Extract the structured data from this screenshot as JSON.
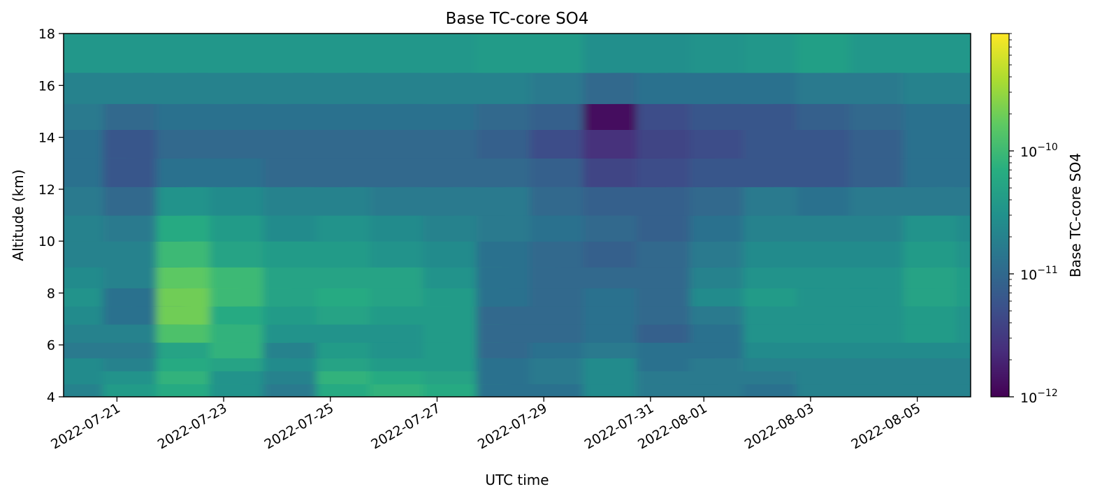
{
  "chart_data": {
    "type": "heatmap",
    "title": "Base TC-core SO4",
    "xlabel": "UTC time",
    "ylabel": "Altitude (km)",
    "colorbar_label": "Base TC-core SO4",
    "colormap": "viridis",
    "colorbar_scale": "log",
    "color_range": [
      1e-12,
      9e-10
    ],
    "colorbar_ticks": [
      {
        "value": 1e-12,
        "base": "10",
        "exp": "−12"
      },
      {
        "value": 1e-11,
        "base": "10",
        "exp": "−11"
      },
      {
        "value": 1e-10,
        "base": "10",
        "exp": "−10"
      }
    ],
    "xlim": [
      "2022-07-20",
      "2022-08-06"
    ],
    "ylim": [
      4,
      18
    ],
    "x_ticks": [
      {
        "date": "2022-07-21",
        "label": "2022-07-21"
      },
      {
        "date": "2022-07-23",
        "label": "2022-07-23"
      },
      {
        "date": "2022-07-25",
        "label": "2022-07-25"
      },
      {
        "date": "2022-07-27",
        "label": "2022-07-27"
      },
      {
        "date": "2022-07-29",
        "label": "2022-07-29"
      },
      {
        "date": "2022-07-31",
        "label": "2022-07-31"
      },
      {
        "date": "2022-08-01",
        "label": "2022-08-01"
      },
      {
        "date": "2022-08-03",
        "label": "2022-08-03"
      },
      {
        "date": "2022-08-05",
        "label": "2022-08-05"
      }
    ],
    "y_ticks": [
      4,
      6,
      8,
      10,
      12,
      14,
      16,
      18
    ],
    "altitude_levels_km": [
      {
        "bottom": 4.0,
        "top": 4.5
      },
      {
        "bottom": 4.5,
        "top": 5.0
      },
      {
        "bottom": 5.0,
        "top": 5.5
      },
      {
        "bottom": 5.5,
        "top": 6.1
      },
      {
        "bottom": 6.1,
        "top": 6.8
      },
      {
        "bottom": 6.8,
        "top": 7.5
      },
      {
        "bottom": 7.5,
        "top": 8.2
      },
      {
        "bottom": 8.2,
        "top": 9.0
      },
      {
        "bottom": 9.0,
        "top": 10.0
      },
      {
        "bottom": 10.0,
        "top": 11.0
      },
      {
        "bottom": 11.0,
        "top": 12.1
      },
      {
        "bottom": 12.1,
        "top": 13.2
      },
      {
        "bottom": 13.2,
        "top": 14.3
      },
      {
        "bottom": 14.3,
        "top": 15.3
      },
      {
        "bottom": 15.3,
        "top": 16.5
      },
      {
        "bottom": 16.5,
        "top": 18.0
      }
    ],
    "time_columns": [
      "2022-07-20",
      "2022-07-21",
      "2022-07-22",
      "2022-07-23",
      "2022-07-24",
      "2022-07-25",
      "2022-07-26",
      "2022-07-27",
      "2022-07-28",
      "2022-07-29",
      "2022-07-30",
      "2022-07-31",
      "2022-08-01",
      "2022-08-02",
      "2022-08-03",
      "2022-08-04",
      "2022-08-05",
      "2022-08-06"
    ],
    "log10_values": [
      [
        -10.7,
        -10.4,
        -10.2,
        -10.5,
        -10.8,
        -10.2,
        -10.1,
        -10.2,
        -10.9,
        -10.9,
        -10.6,
        -10.8,
        -10.8,
        -10.9,
        -10.7,
        -10.7,
        -10.7,
        -10.7
      ],
      [
        -10.6,
        -10.5,
        -10.1,
        -10.5,
        -10.7,
        -10.1,
        -10.2,
        -10.3,
        -10.9,
        -10.8,
        -10.6,
        -10.8,
        -10.8,
        -10.8,
        -10.7,
        -10.7,
        -10.7,
        -10.7
      ],
      [
        -10.6,
        -10.7,
        -10.2,
        -10.3,
        -10.6,
        -10.3,
        -10.4,
        -10.4,
        -10.9,
        -10.8,
        -10.6,
        -10.9,
        -10.8,
        -10.7,
        -10.7,
        -10.7,
        -10.7,
        -10.7
      ],
      [
        -10.8,
        -10.8,
        -10.3,
        -10.1,
        -10.7,
        -10.4,
        -10.5,
        -10.4,
        -11.0,
        -10.9,
        -10.8,
        -10.9,
        -10.9,
        -10.6,
        -10.6,
        -10.6,
        -10.6,
        -10.6
      ],
      [
        -10.7,
        -10.7,
        -9.9,
        -10.1,
        -10.5,
        -10.5,
        -10.5,
        -10.4,
        -11.0,
        -11.0,
        -10.9,
        -11.1,
        -10.9,
        -10.5,
        -10.5,
        -10.5,
        -10.4,
        -10.5
      ],
      [
        -10.6,
        -10.9,
        -9.7,
        -10.2,
        -10.4,
        -10.3,
        -10.4,
        -10.4,
        -11.0,
        -11.0,
        -10.9,
        -11.0,
        -10.8,
        -10.5,
        -10.5,
        -10.5,
        -10.4,
        -10.5
      ],
      [
        -10.5,
        -10.9,
        -9.7,
        -10.0,
        -10.3,
        -10.2,
        -10.3,
        -10.4,
        -10.9,
        -11.0,
        -10.9,
        -11.0,
        -10.6,
        -10.4,
        -10.5,
        -10.5,
        -10.3,
        -10.4
      ],
      [
        -10.6,
        -10.7,
        -9.8,
        -10.0,
        -10.3,
        -10.3,
        -10.3,
        -10.5,
        -10.9,
        -11.0,
        -11.0,
        -11.0,
        -10.7,
        -10.5,
        -10.5,
        -10.5,
        -10.3,
        -10.4
      ],
      [
        -10.7,
        -10.7,
        -10.0,
        -10.3,
        -10.4,
        -10.4,
        -10.5,
        -10.6,
        -10.9,
        -11.0,
        -11.1,
        -11.0,
        -10.8,
        -10.6,
        -10.6,
        -10.6,
        -10.4,
        -10.5
      ],
      [
        -10.7,
        -10.8,
        -10.2,
        -10.4,
        -10.6,
        -10.5,
        -10.6,
        -10.7,
        -10.8,
        -10.9,
        -11.0,
        -11.1,
        -10.9,
        -10.7,
        -10.7,
        -10.7,
        -10.5,
        -10.6
      ],
      [
        -10.8,
        -11.0,
        -10.5,
        -10.6,
        -10.7,
        -10.7,
        -10.8,
        -10.8,
        -10.8,
        -11.0,
        -11.1,
        -11.1,
        -11.0,
        -10.8,
        -10.9,
        -10.8,
        -10.8,
        -10.8
      ],
      [
        -10.9,
        -11.2,
        -10.9,
        -10.9,
        -11.0,
        -11.0,
        -11.0,
        -11.0,
        -11.0,
        -11.1,
        -11.4,
        -11.3,
        -11.2,
        -11.2,
        -11.2,
        -11.1,
        -10.9,
        -10.9
      ],
      [
        -10.9,
        -11.2,
        -11.0,
        -11.0,
        -11.0,
        -11.0,
        -11.0,
        -11.0,
        -11.1,
        -11.3,
        -11.6,
        -11.4,
        -11.3,
        -11.2,
        -11.2,
        -11.1,
        -10.9,
        -10.9
      ],
      [
        -10.8,
        -11.0,
        -10.9,
        -10.9,
        -10.9,
        -10.9,
        -10.9,
        -10.9,
        -11.0,
        -11.1,
        -11.9,
        -11.3,
        -11.2,
        -11.2,
        -11.1,
        -11.0,
        -10.9,
        -10.9
      ],
      [
        -10.7,
        -10.7,
        -10.7,
        -10.7,
        -10.7,
        -10.7,
        -10.7,
        -10.7,
        -10.7,
        -10.8,
        -11.0,
        -10.9,
        -10.9,
        -10.9,
        -10.8,
        -10.8,
        -10.7,
        -10.7
      ],
      [
        -10.45,
        -10.45,
        -10.45,
        -10.45,
        -10.45,
        -10.45,
        -10.45,
        -10.45,
        -10.4,
        -10.4,
        -10.55,
        -10.55,
        -10.5,
        -10.45,
        -10.35,
        -10.45,
        -10.45,
        -10.45
      ]
    ]
  }
}
